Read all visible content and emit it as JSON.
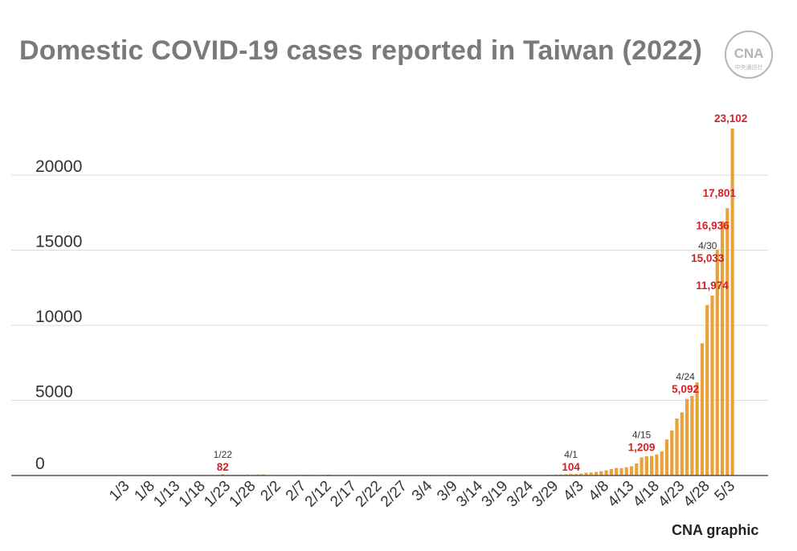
{
  "title": "Domestic COVID-19 cases reported in Taiwan (2022)",
  "logo": {
    "icon": "cna-logo-icon",
    "text": "CNA",
    "subtext": "中央通訊社"
  },
  "credit": "CNA graphic",
  "colors": {
    "bar": "#E9A23B",
    "highlight": "#D32027",
    "note": "#333333",
    "grid": "#dcdcdc",
    "axis": "#555555",
    "title": "#7a7a7a"
  },
  "chart_data": {
    "type": "bar",
    "title": "Domestic COVID-19 cases reported in Taiwan (2022)",
    "xlabel": "",
    "ylabel": "",
    "ylim": [
      0,
      25000
    ],
    "grid": true,
    "legend": "none",
    "yticks": [
      0,
      5000,
      10000,
      15000,
      20000
    ],
    "xtick_labels": [
      "1/3",
      "1/8",
      "1/13",
      "1/18",
      "1/23",
      "1/28",
      "2/2",
      "2/7",
      "2/12",
      "2/17",
      "2/22",
      "2/27",
      "3/4",
      "3/9",
      "3/14",
      "3/19",
      "3/24",
      "3/29",
      "4/3",
      "4/8",
      "4/13",
      "4/18",
      "4/23",
      "4/28",
      "5/3"
    ],
    "categories": [
      "1/3",
      "1/4",
      "1/5",
      "1/6",
      "1/7",
      "1/8",
      "1/9",
      "1/10",
      "1/11",
      "1/12",
      "1/13",
      "1/14",
      "1/15",
      "1/16",
      "1/17",
      "1/18",
      "1/19",
      "1/20",
      "1/21",
      "1/22",
      "1/23",
      "1/24",
      "1/25",
      "1/26",
      "1/27",
      "1/28",
      "1/29",
      "1/30",
      "1/31",
      "2/1",
      "2/2",
      "2/3",
      "2/4",
      "2/5",
      "2/6",
      "2/7",
      "2/8",
      "2/9",
      "2/10",
      "2/11",
      "2/12",
      "2/13",
      "2/14",
      "2/15",
      "2/16",
      "2/17",
      "2/18",
      "2/19",
      "2/20",
      "2/21",
      "2/22",
      "2/23",
      "2/24",
      "2/25",
      "2/26",
      "2/27",
      "2/28",
      "3/1",
      "3/2",
      "3/3",
      "3/4",
      "3/5",
      "3/6",
      "3/7",
      "3/8",
      "3/9",
      "3/10",
      "3/11",
      "3/12",
      "3/13",
      "3/14",
      "3/15",
      "3/16",
      "3/17",
      "3/18",
      "3/19",
      "3/20",
      "3/21",
      "3/22",
      "3/23",
      "3/24",
      "3/25",
      "3/26",
      "3/27",
      "3/28",
      "3/29",
      "3/30",
      "3/31",
      "4/1",
      "4/2",
      "4/3",
      "4/4",
      "4/5",
      "4/6",
      "4/7",
      "4/8",
      "4/9",
      "4/10",
      "4/11",
      "4/12",
      "4/13",
      "4/14",
      "4/15",
      "4/16",
      "4/17",
      "4/18",
      "4/19",
      "4/20",
      "4/21",
      "4/22",
      "4/23",
      "4/24",
      "4/25",
      "4/26",
      "4/27",
      "4/28",
      "4/29",
      "4/30",
      "5/1",
      "5/2",
      "5/3"
    ],
    "values": [
      3,
      2,
      3,
      4,
      3,
      5,
      4,
      3,
      5,
      6,
      8,
      10,
      12,
      15,
      14,
      10,
      18,
      20,
      30,
      82,
      40,
      55,
      50,
      45,
      60,
      35,
      70,
      75,
      20,
      30,
      15,
      10,
      20,
      25,
      35,
      50,
      40,
      30,
      25,
      40,
      55,
      20,
      15,
      10,
      10,
      8,
      8,
      6,
      5,
      5,
      5,
      3,
      3,
      3,
      2,
      2,
      2,
      2,
      3,
      3,
      2,
      2,
      2,
      3,
      4,
      3,
      4,
      5,
      3,
      4,
      5,
      5,
      6,
      5,
      6,
      6,
      8,
      8,
      10,
      8,
      10,
      12,
      15,
      30,
      40,
      60,
      70,
      80,
      104,
      100,
      130,
      180,
      200,
      240,
      280,
      350,
      430,
      500,
      480,
      550,
      610,
      800,
      1209,
      1280,
      1300,
      1400,
      1600,
      2400,
      3000,
      3800,
      4200,
      5092,
      5300,
      6200,
      8800,
      11353,
      11974,
      15033,
      16936,
      17801,
      23102
    ],
    "annotations": [
      {
        "category": "1/22",
        "date_label": "1/22",
        "value_label": "82"
      },
      {
        "category": "4/1",
        "date_label": "4/1",
        "value_label": "104"
      },
      {
        "category": "4/15",
        "date_label": "4/15",
        "value_label": "1,209"
      },
      {
        "category": "4/24",
        "date_label": "4/24",
        "value_label": "5,092"
      },
      {
        "category": "4/29",
        "date_label": "",
        "value_label": "11,974"
      },
      {
        "category": "4/30",
        "date_label": "4/30",
        "value_label": "15,033"
      },
      {
        "category": "5/1",
        "date_label": "",
        "value_label": "16,936"
      },
      {
        "category": "5/2",
        "date_label": "",
        "value_label": "17,801"
      },
      {
        "category": "5/3",
        "date_label": "",
        "value_label": "23,102"
      }
    ]
  }
}
